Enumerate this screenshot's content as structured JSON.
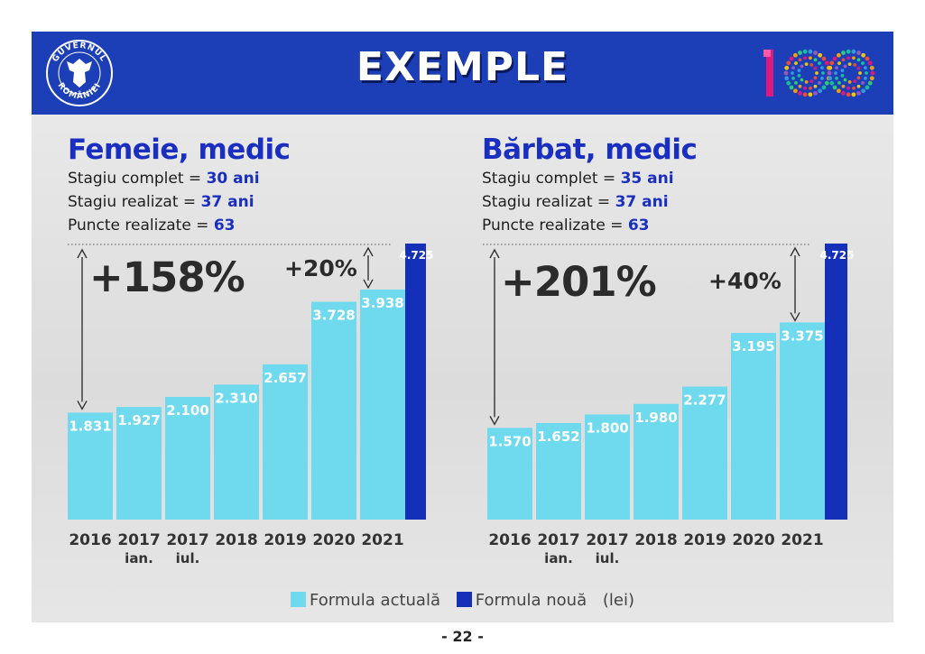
{
  "header": {
    "title": "EXEMPLE",
    "logo_text": "GUVERNUL ROMÂNIEI",
    "badge": "100"
  },
  "colors": {
    "banner": "#1c3fb8",
    "current_formula": "#6fd9ee",
    "new_formula": "#1530b8",
    "title_blue": "#1a2fbf"
  },
  "panels": [
    {
      "title": "Femeie, medic",
      "stats": [
        {
          "label": "Stagiu complet = ",
          "value": "30 ani"
        },
        {
          "label": "Stagiu realizat = ",
          "value": "37 ani"
        },
        {
          "label": "Puncte realizate = ",
          "value": "63"
        }
      ]
    },
    {
      "title": "Bărbat, medic",
      "stats": [
        {
          "label": "Stagiu complet = ",
          "value": "35 ani"
        },
        {
          "label": "Stagiu realizat = ",
          "value": "37 ani"
        },
        {
          "label": "Puncte realizate = ",
          "value": "63"
        }
      ]
    }
  ],
  "legend": {
    "current": "Formula actuală",
    "new": "Formula nouă",
    "unit": "(lei)"
  },
  "page_number": "- 22 -",
  "chart_data": [
    {
      "type": "bar",
      "categories": [
        "2016",
        "2017 ian.",
        "2017 iul.",
        "2018",
        "2019",
        "2020",
        "2021"
      ],
      "series": [
        {
          "name": "Formula actuală",
          "values": [
            1831,
            1927,
            2100,
            2310,
            2657,
            3728,
            3938
          ]
        },
        {
          "name": "Formula nouă",
          "values": [
            null,
            null,
            null,
            null,
            null,
            null,
            4725
          ]
        }
      ],
      "value_labels": [
        "1.831",
        "1.927",
        "2.100",
        "2.310",
        "2.657",
        "3.728",
        "3.938"
      ],
      "new_label": "4.725",
      "annotations": {
        "total_growth": "+158%",
        "new_growth": "+20%"
      },
      "ylim": [
        0,
        4725
      ]
    },
    {
      "type": "bar",
      "categories": [
        "2016",
        "2017 ian.",
        "2017 iul.",
        "2018",
        "2019",
        "2020",
        "2021"
      ],
      "series": [
        {
          "name": "Formula actuală",
          "values": [
            1570,
            1652,
            1800,
            1980,
            2277,
            3195,
            3375
          ]
        },
        {
          "name": "Formula nouă",
          "values": [
            null,
            null,
            null,
            null,
            null,
            null,
            4725
          ]
        }
      ],
      "value_labels": [
        "1.570",
        "1.652",
        "1.800",
        "1.980",
        "2.277",
        "3.195",
        "3.375"
      ],
      "new_label": "4.725",
      "annotations": {
        "total_growth": "+201%",
        "new_growth": "+40%"
      },
      "ylim": [
        0,
        4725
      ]
    }
  ]
}
